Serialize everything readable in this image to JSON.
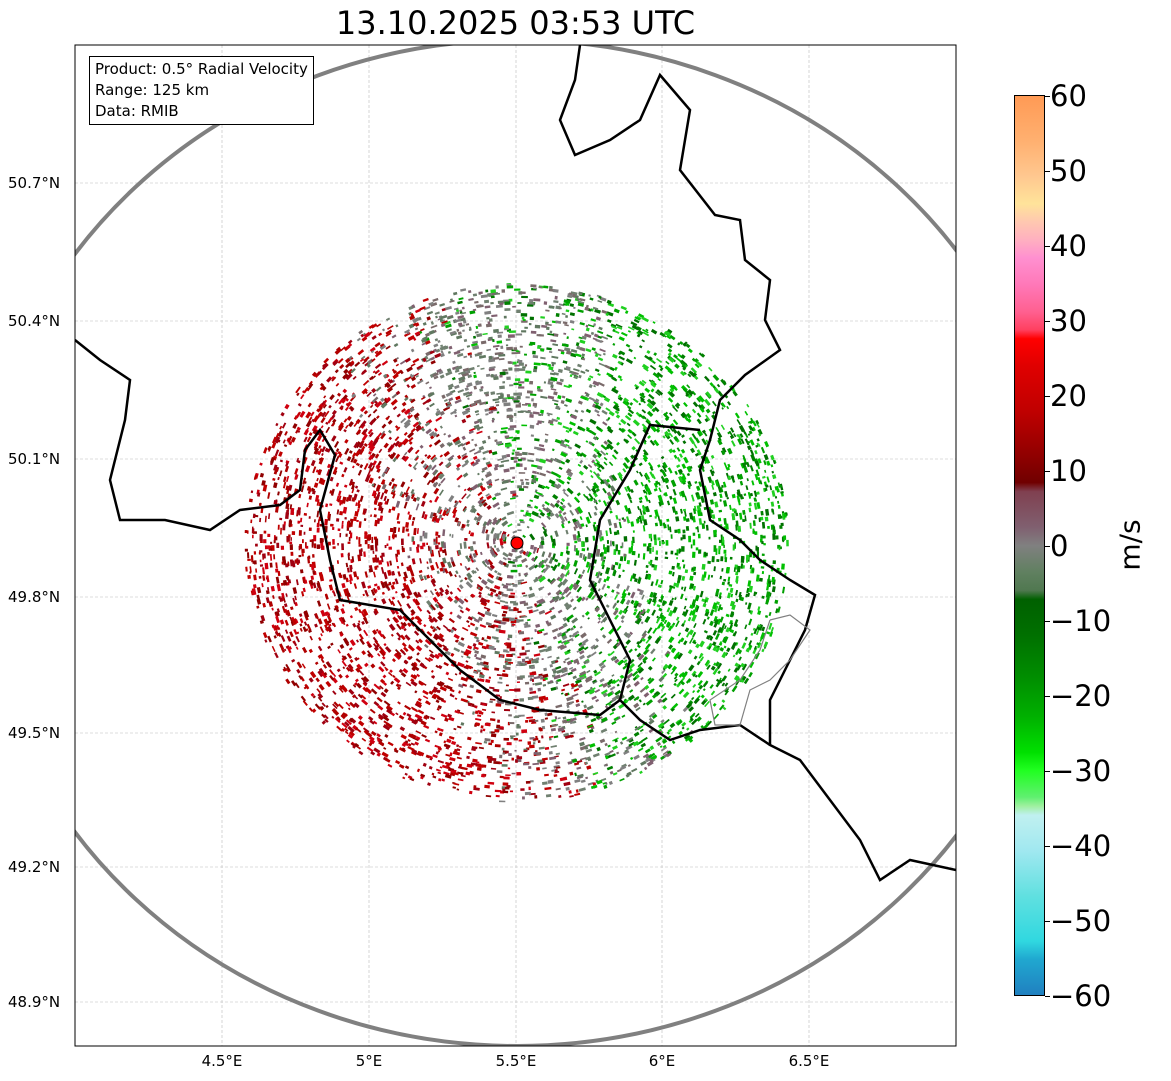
{
  "title": "13.10.2025 03:53 UTC",
  "info": {
    "line1": "Product: 0.5° Radial Velocity",
    "line2": "Range: 125 km",
    "line3": "Data: RMIB"
  },
  "lat_ticks": [
    "50.7°N",
    "50.4°N",
    "50.1°N",
    "49.8°N",
    "49.5°N",
    "49.2°N",
    "48.9°N"
  ],
  "lon_ticks": [
    "4.5°E",
    "5°E",
    "5.5°E",
    "6°E",
    "6.5°E"
  ],
  "colorbar": {
    "unit": "m/s",
    "ticks": [
      "60",
      "50",
      "40",
      "30",
      "20",
      "10",
      "0",
      "−10",
      "−20",
      "−30",
      "−40",
      "−50",
      "−60"
    ],
    "range": [
      -60,
      60
    ]
  },
  "radar_site": {
    "lat": 49.91,
    "lon": 5.5,
    "color": "#ff0000"
  }
}
